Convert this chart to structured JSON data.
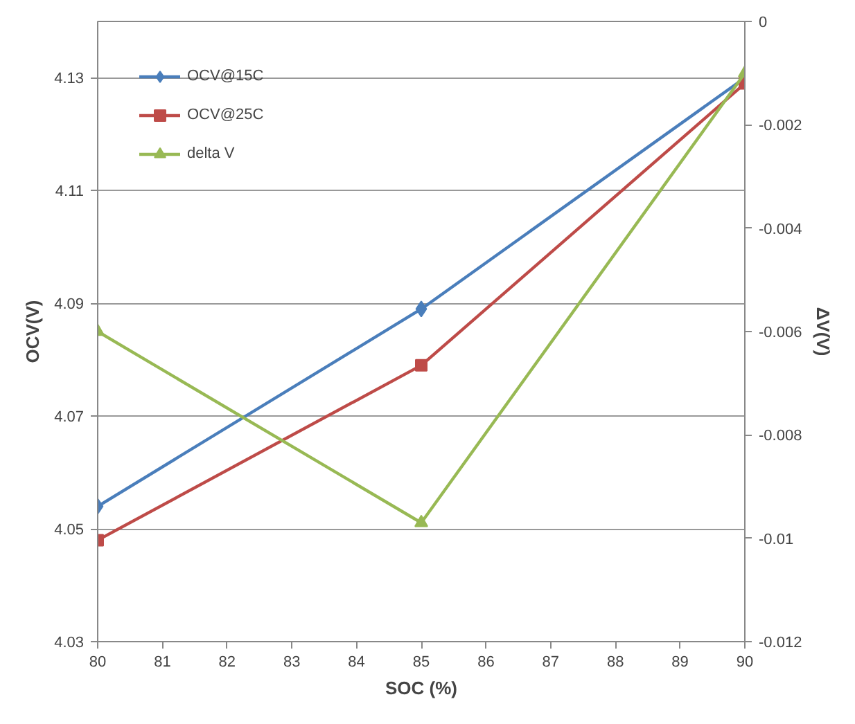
{
  "chart_data": {
    "type": "line",
    "xlabel": "SOC (%)",
    "ylabel": "OCV(V)",
    "y2label": "ΔV(V)",
    "x": [
      80,
      85,
      90
    ],
    "xlim": [
      80,
      90
    ],
    "xticks": [
      80,
      81,
      82,
      83,
      84,
      85,
      86,
      87,
      88,
      89,
      90
    ],
    "ylim": [
      4.03,
      4.14
    ],
    "yticks": [
      4.03,
      4.05,
      4.07,
      4.09,
      4.11,
      4.13
    ],
    "y2lim": [
      -0.012,
      0
    ],
    "y2ticks": [
      -0.012,
      -0.01,
      -0.008,
      -0.006,
      -0.004,
      -0.002,
      0
    ],
    "grid": "y",
    "legend": "top left",
    "series": [
      {
        "name": "OCV@15C",
        "color": "#4a7ebb",
        "marker": "diamond",
        "values": [
          4.054,
          4.089,
          4.13
        ]
      },
      {
        "name": "OCV@25C",
        "color": "#be4b48",
        "marker": "square",
        "values": [
          4.048,
          4.079,
          4.129
        ]
      },
      {
        "name": "delta V",
        "color": "#98b954",
        "marker": "triangle",
        "axis": "y2",
        "values": [
          -0.006,
          -0.0097,
          -0.001
        ]
      }
    ]
  }
}
